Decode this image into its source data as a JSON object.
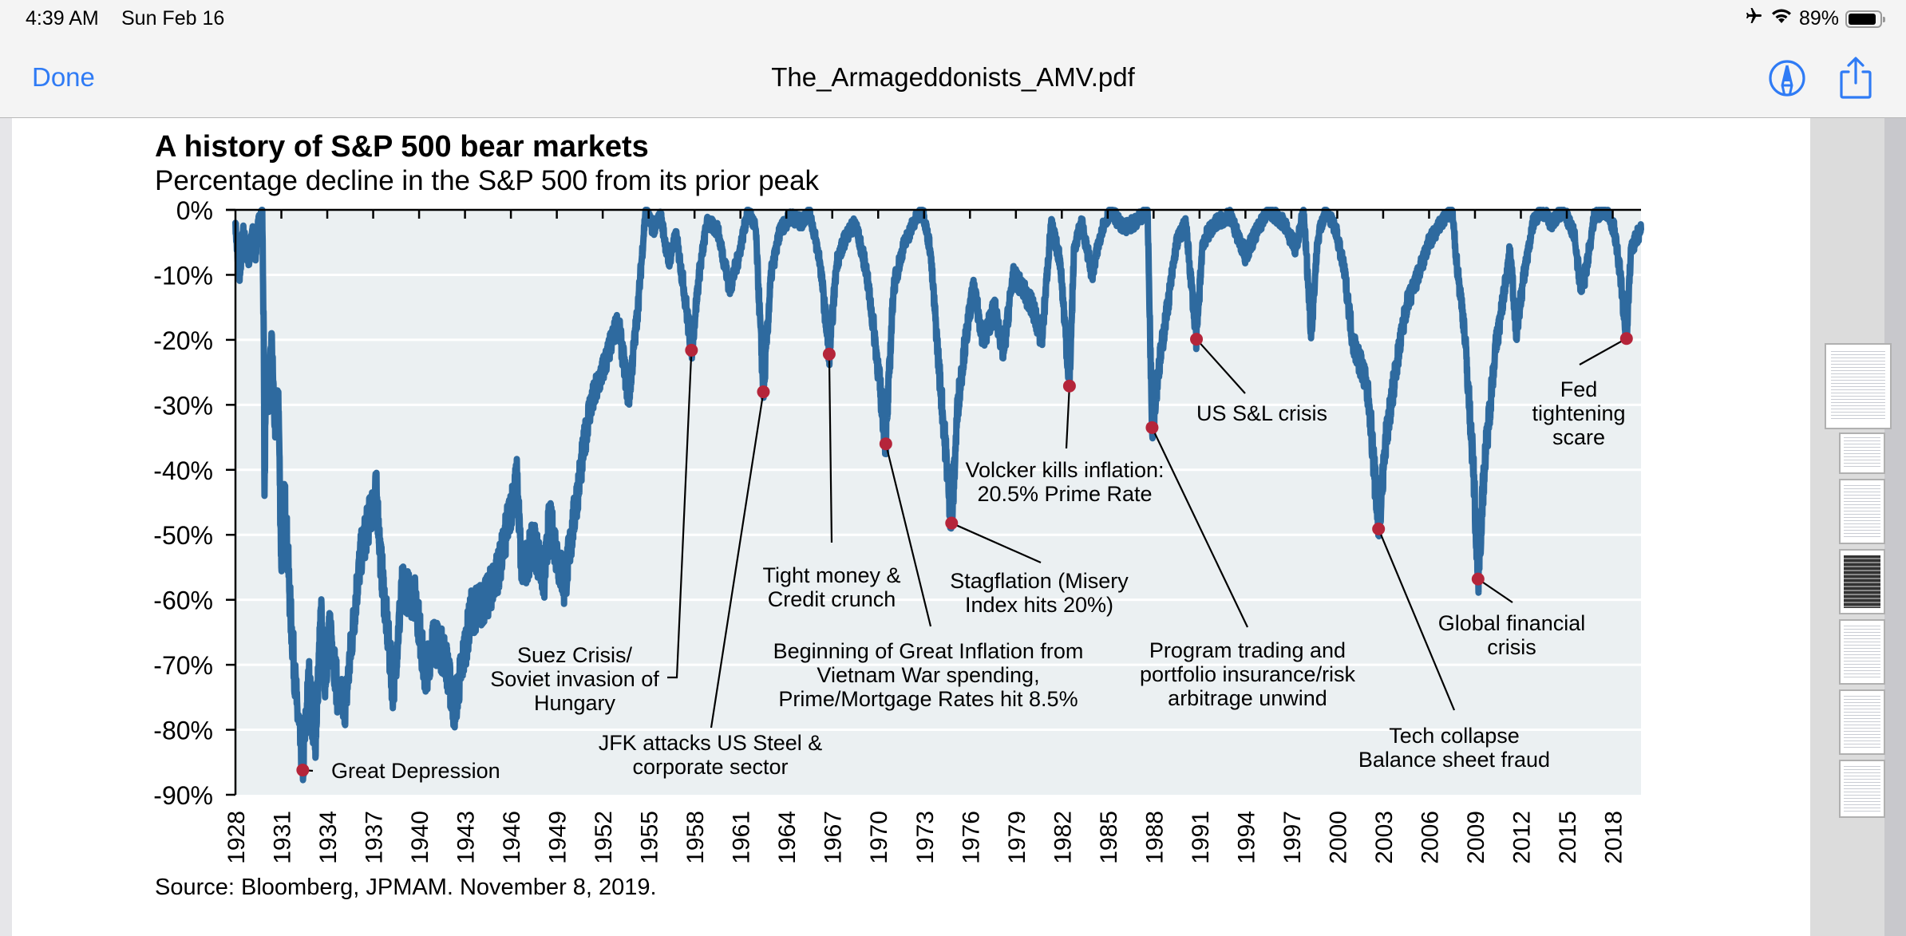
{
  "status_bar": {
    "time": "4:39 AM",
    "date": "Sun Feb 16",
    "battery_percent": "89%",
    "battery_level": 0.89,
    "icons": [
      "airplane-mode-icon",
      "wifi-icon",
      "battery-icon"
    ]
  },
  "nav": {
    "done_label": "Done",
    "document_title": "The_Armageddonists_AMV.pdf",
    "markup_icon": "markup-pen-icon",
    "share_icon": "share-icon"
  },
  "sidebar": {
    "thumbnail_count": 7,
    "selected_page": 1
  },
  "colors": {
    "accent": "#2f7bf5",
    "series": "#2e6a9f",
    "marker": "#b5253a",
    "plot_bg": "#ebf0f2"
  },
  "chart_data": {
    "type": "line",
    "title": "A history of S&P 500 bear markets",
    "subtitle": "Percentage decline in the S&P 500 from its prior peak",
    "source": "Source: Bloomberg, JPMAM. November  8, 2019.",
    "xlabel": "",
    "ylabel": "",
    "xlim": [
      1928,
      2019.85
    ],
    "ylim": [
      -90,
      0
    ],
    "grid": true,
    "legend": "none",
    "y_ticks": [
      0,
      -10,
      -20,
      -30,
      -40,
      -50,
      -60,
      -70,
      -80,
      -90
    ],
    "y_tick_labels": [
      "0%",
      "-10%",
      "-20%",
      "-30%",
      "-40%",
      "-50%",
      "-60%",
      "-70%",
      "-80%",
      "-90%"
    ],
    "x_ticks": [
      1928,
      1931,
      1934,
      1937,
      1940,
      1943,
      1946,
      1949,
      1952,
      1955,
      1958,
      1961,
      1964,
      1967,
      1970,
      1973,
      1976,
      1979,
      1982,
      1985,
      1988,
      1991,
      1994,
      1997,
      2000,
      2003,
      2006,
      2009,
      2012,
      2015,
      2018
    ],
    "x_tick_labels": [
      "1928",
      "1931",
      "1934",
      "1937",
      "1940",
      "1943",
      "1946",
      "1949",
      "1952",
      "1955",
      "1958",
      "1961",
      "1964",
      "1967",
      "1970",
      "1973",
      "1976",
      "1979",
      "1982",
      "1985",
      "1988",
      "1991",
      "1994",
      "1997",
      "2000",
      "2003",
      "2006",
      "2009",
      "2012",
      "2015",
      "2018"
    ],
    "series": [
      {
        "name": "S&P 500 drawdown from prior peak (%)",
        "x": [
          1928.0,
          1928.15,
          1928.3,
          1928.5,
          1928.7,
          1928.9,
          1929.1,
          1929.3,
          1929.5,
          1929.75,
          1929.85,
          1929.9,
          1930.0,
          1930.2,
          1930.35,
          1930.6,
          1930.8,
          1931.0,
          1931.2,
          1931.6,
          1932.0,
          1932.4,
          1932.8,
          1933.2,
          1933.6,
          1933.8,
          1934.2,
          1934.7,
          1935.2,
          1935.9,
          1936.2,
          1937.2,
          1937.5,
          1938.3,
          1938.9,
          1939.8,
          1940.4,
          1940.9,
          1941.7,
          1942.3,
          1943.4,
          1944.4,
          1945.3,
          1946.4,
          1946.7,
          1947.5,
          1948.2,
          1948.5,
          1949.5,
          1950.5,
          1951.1,
          1952.1,
          1953.0,
          1953.7,
          1954.3,
          1954.8,
          1955.3,
          1955.8,
          1956.3,
          1956.8,
          1957.3,
          1957.8,
          1958.3,
          1958.8,
          1959.5,
          1960.3,
          1960.8,
          1961.5,
          1962.0,
          1962.5,
          1963.0,
          1963.6,
          1964.3,
          1965.0,
          1965.5,
          1966.2,
          1966.8,
          1967.3,
          1967.9,
          1968.5,
          1969.2,
          1969.8,
          1970.5,
          1971.0,
          1971.6,
          1972.3,
          1972.9,
          1973.4,
          1974.0,
          1974.8,
          1975.2,
          1975.6,
          1976.2,
          1976.9,
          1977.6,
          1978.2,
          1978.8,
          1979.4,
          1980.1,
          1980.7,
          1981.3,
          1981.9,
          1982.5,
          1982.8,
          1983.3,
          1984.0,
          1984.6,
          1985.2,
          1986.0,
          1986.7,
          1987.6,
          1987.9,
          1988.3,
          1988.9,
          1989.5,
          1990.1,
          1990.8,
          1991.2,
          1992.0,
          1993.0,
          1994.0,
          1994.8,
          1995.5,
          1996.5,
          1997.3,
          1997.8,
          1998.3,
          1998.7,
          1999.2,
          1999.9,
          2000.5,
          2001.0,
          2001.7,
          2002.1,
          2002.7,
          2003.2,
          2003.8,
          2004.5,
          2005.3,
          2006.0,
          2006.8,
          2007.5,
          2007.8,
          2008.3,
          2008.9,
          2009.2,
          2009.6,
          2010.3,
          2010.7,
          2011.3,
          2011.7,
          2012.2,
          2012.8,
          2013.3,
          2014.0,
          2014.8,
          2015.5,
          2015.9,
          2016.2,
          2016.8,
          2017.5,
          2018.1,
          2018.5,
          2018.9,
          2019.2,
          2019.6,
          2019.85
        ],
        "y": [
          -2,
          -8,
          -10,
          -3,
          -6,
          -8,
          -3,
          -7,
          -2,
          0,
          -20,
          -44,
          -25,
          -30,
          -19,
          -35,
          -28,
          -55,
          -43,
          -62,
          -76,
          -86.2,
          -72,
          -83,
          -62,
          -73,
          -64,
          -75,
          -76,
          -59,
          -53,
          -43,
          -54,
          -74,
          -58,
          -60,
          -72,
          -66,
          -68.5,
          -77,
          -62,
          -60,
          -54.5,
          -41,
          -56,
          -51,
          -57,
          -47.5,
          -58,
          -41,
          -31,
          -24,
          -17,
          -29,
          -15,
          0,
          -3,
          -1,
          -8,
          -4,
          -12,
          -21.6,
          -10,
          -2,
          -3,
          -12,
          -8,
          0,
          -3,
          -28,
          -10,
          -3,
          -1,
          -2,
          0,
          -8,
          -22.2,
          -8,
          -4,
          -2,
          -9,
          -20,
          -36,
          -12,
          -6,
          -2,
          0,
          -6,
          -25,
          -48.2,
          -30,
          -22,
          -12,
          -20,
          -15,
          -22,
          -10,
          -12,
          -15,
          -20,
          -2,
          -8,
          -27.1,
          -6,
          -2,
          -10,
          -3,
          0,
          -3,
          -2,
          0,
          -33.5,
          -25,
          -15,
          -5,
          -2,
          -19.9,
          -5,
          -2,
          -1,
          -7,
          -3,
          0,
          -2,
          -6,
          0,
          -19,
          -5,
          0,
          -3,
          -10,
          -20,
          -25,
          -30,
          -49.1,
          -35,
          -25,
          -15,
          -10,
          -5,
          -2,
          0,
          -8,
          -18,
          -40,
          -56.8,
          -40,
          -22,
          -16,
          -6,
          -19,
          -10,
          -2,
          0,
          -2,
          0,
          -4,
          -12,
          -10,
          -1,
          0,
          -3,
          -10,
          -19.8,
          -6,
          -4,
          -3
        ]
      }
    ],
    "annotations": [
      {
        "label": "Great Depression",
        "year": 1932.4,
        "value": -86.2
      },
      {
        "label": "Suez Crisis/ Soviet invasion of Hungary",
        "year": 1957.8,
        "value": -21.6
      },
      {
        "label": "JFK attacks US Steel & corporate sector",
        "year": 1962.5,
        "value": -28.0
      },
      {
        "label": "Tight money & Credit crunch",
        "year": 1966.8,
        "value": -22.2
      },
      {
        "label": "Beginning of Great Inflation from Vietnam War spending, Prime/Mortgage Rates hit 8.5%",
        "year": 1970.5,
        "value": -36.0
      },
      {
        "label": "Stagflation (Misery Index hits 20%)",
        "year": 1974.8,
        "value": -48.2
      },
      {
        "label": "Volcker kills inflation: 20.5% Prime Rate",
        "year": 1982.5,
        "value": -27.1
      },
      {
        "label": "Program trading and portfolio insurance/risk arbitrage unwind",
        "year": 1987.9,
        "value": -33.5
      },
      {
        "label": "US S&L crisis",
        "year": 1990.8,
        "value": -19.9
      },
      {
        "label": "Tech collapse Balance sheet fraud",
        "year": 2002.7,
        "value": -49.1
      },
      {
        "label": "Global financial crisis",
        "year": 2009.2,
        "value": -56.8
      },
      {
        "label": "Fed tightening scare",
        "year": 2018.9,
        "value": -19.8
      }
    ]
  },
  "annotation_text": {
    "great_depression": [
      "Great Depression"
    ],
    "suez": [
      "Suez Crisis/",
      "Soviet invasion of",
      "Hungary"
    ],
    "jfk": [
      "JFK attacks US Steel &",
      "corporate sector"
    ],
    "tight_money": [
      "Tight money &",
      "Credit crunch"
    ],
    "great_inflation": [
      "Beginning of Great Inflation from",
      "Vietnam War spending,",
      "Prime/Mortgage Rates hit 8.5%"
    ],
    "stagflation": [
      "Stagflation (Misery",
      "Index hits 20%)"
    ],
    "volcker": [
      "Volcker kills inflation:",
      "20.5% Prime Rate"
    ],
    "program_trading": [
      "Program trading and",
      "portfolio insurance/risk",
      "arbitrage unwind"
    ],
    "sl_crisis": [
      "US S&L crisis"
    ],
    "tech_collapse": [
      "Tech collapse",
      "Balance sheet fraud"
    ],
    "gfc": [
      "Global financial",
      "crisis"
    ],
    "fed": [
      "Fed",
      "tightening",
      "scare"
    ]
  }
}
